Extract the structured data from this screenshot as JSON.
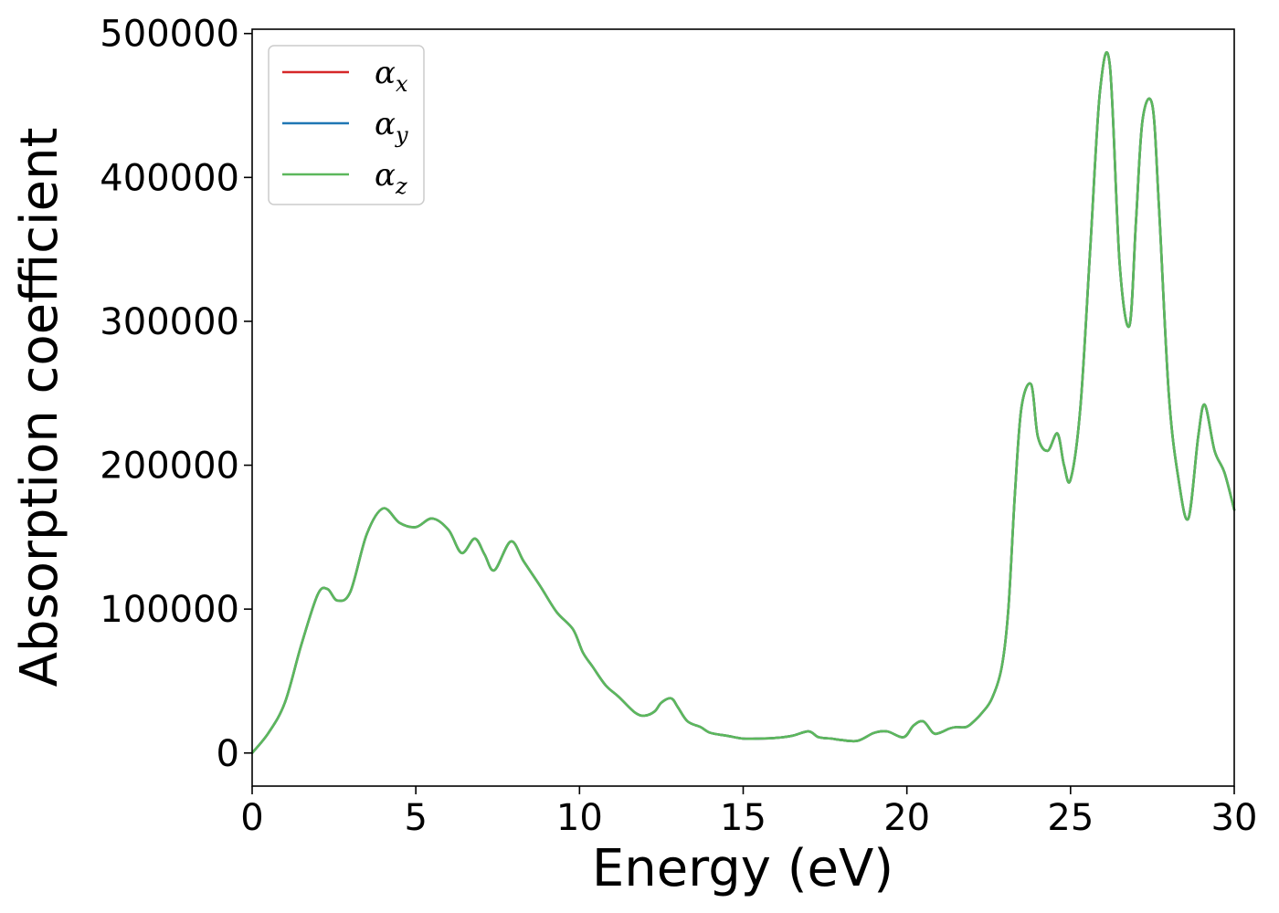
{
  "chart_data": {
    "type": "line",
    "xlabel": "Energy (eV)",
    "ylabel": "Absorption coefficient",
    "xlim": [
      0,
      30
    ],
    "ylim": [
      -23000,
      503000
    ],
    "x_ticks": [
      0,
      5,
      10,
      15,
      20,
      25,
      30
    ],
    "x_tick_labels": [
      "0",
      "5",
      "10",
      "15",
      "20",
      "25",
      "30"
    ],
    "y_ticks": [
      0,
      100000,
      200000,
      300000,
      400000,
      500000
    ],
    "y_tick_labels": [
      "0",
      "100000",
      "200000",
      "300000",
      "400000",
      "500000"
    ],
    "grid": false,
    "legend_position": "top-left",
    "x": [
      0,
      0.5,
      1,
      1.5,
      2,
      2.3,
      2.6,
      3,
      3.5,
      4,
      4.5,
      5,
      5.5,
      6,
      6.4,
      6.8,
      7.1,
      7.4,
      7.9,
      8.3,
      8.8,
      9.3,
      9.8,
      10.1,
      10.4,
      10.8,
      11.2,
      11.7,
      12,
      12.3,
      12.5,
      12.8,
      13,
      13.3,
      13.7,
      14,
      14.5,
      15,
      15.5,
      16,
      16.5,
      17,
      17.3,
      17.7,
      18,
      18.5,
      19,
      19.4,
      19.9,
      20.2,
      20.5,
      20.8,
      21,
      21.3,
      21.5,
      21.8,
      22,
      22.3,
      22.6,
      22.9,
      23.1,
      23.3,
      23.5,
      23.8,
      24,
      24.3,
      24.6,
      24.8,
      25,
      25.3,
      25.6,
      25.9,
      26.2,
      26.5,
      26.8,
      27,
      27.2,
      27.5,
      27.7,
      28,
      28.3,
      28.6,
      28.9,
      29.1,
      29.4,
      29.7,
      30
    ],
    "series": [
      {
        "name": "α_x",
        "label_base": "α",
        "label_sub": "x",
        "color": "#d62728",
        "values": [
          0,
          14000,
          35000,
          75000,
          110000,
          114000,
          106000,
          112000,
          152000,
          170000,
          160000,
          157000,
          163000,
          155000,
          139000,
          149000,
          138000,
          127000,
          147000,
          133000,
          116000,
          98000,
          86000,
          70000,
          60000,
          47000,
          39000,
          28000,
          26000,
          29000,
          35000,
          38000,
          32000,
          22000,
          18000,
          14000,
          12000,
          10000,
          10000,
          10500,
          12000,
          15000,
          11000,
          10000,
          9000,
          8500,
          14000,
          15000,
          11000,
          19000,
          22000,
          14000,
          14000,
          17000,
          18000,
          18000,
          21000,
          28000,
          38000,
          60000,
          100000,
          180000,
          240000,
          256000,
          220000,
          210000,
          222000,
          200000,
          190000,
          240000,
          350000,
          460000,
          478000,
          340000,
          297000,
          370000,
          440000,
          450000,
          380000,
          250000,
          190000,
          163000,
          220000,
          242000,
          210000,
          195000,
          169000
        ]
      },
      {
        "name": "α_y",
        "label_base": "α",
        "label_sub": "y",
        "color": "#1f77b4",
        "values": [
          0,
          14000,
          35000,
          75000,
          110000,
          114000,
          106000,
          112000,
          152000,
          170000,
          160000,
          157000,
          163000,
          155000,
          139000,
          149000,
          138000,
          127000,
          147000,
          133000,
          116000,
          98000,
          86000,
          70000,
          60000,
          47000,
          39000,
          28000,
          26000,
          29000,
          35000,
          38000,
          32000,
          22000,
          18000,
          14000,
          12000,
          10000,
          10000,
          10500,
          12000,
          15000,
          11000,
          10000,
          9000,
          8500,
          14000,
          15000,
          11000,
          19000,
          22000,
          14000,
          14000,
          17000,
          18000,
          18000,
          21000,
          28000,
          38000,
          60000,
          100000,
          180000,
          240000,
          256000,
          220000,
          210000,
          222000,
          200000,
          190000,
          240000,
          350000,
          460000,
          478000,
          340000,
          297000,
          370000,
          440000,
          450000,
          380000,
          250000,
          190000,
          163000,
          220000,
          242000,
          210000,
          195000,
          169000
        ]
      },
      {
        "name": "α_z",
        "label_base": "α",
        "label_sub": "z",
        "color": "#5cb85c",
        "values": [
          0,
          14000,
          35000,
          75000,
          110000,
          114000,
          106000,
          112000,
          152000,
          170000,
          160000,
          157000,
          163000,
          155000,
          139000,
          149000,
          138000,
          127000,
          147000,
          133000,
          116000,
          98000,
          86000,
          70000,
          60000,
          47000,
          39000,
          28000,
          26000,
          29000,
          35000,
          38000,
          32000,
          22000,
          18000,
          14000,
          12000,
          10000,
          10000,
          10500,
          12000,
          15000,
          11000,
          10000,
          9000,
          8500,
          14000,
          15000,
          11000,
          19000,
          22000,
          14000,
          14000,
          17000,
          18000,
          18000,
          21000,
          28000,
          38000,
          60000,
          100000,
          180000,
          240000,
          256000,
          220000,
          210000,
          222000,
          200000,
          190000,
          240000,
          350000,
          460000,
          478000,
          340000,
          297000,
          370000,
          440000,
          450000,
          380000,
          250000,
          190000,
          163000,
          220000,
          242000,
          210000,
          195000,
          169000
        ]
      }
    ]
  }
}
